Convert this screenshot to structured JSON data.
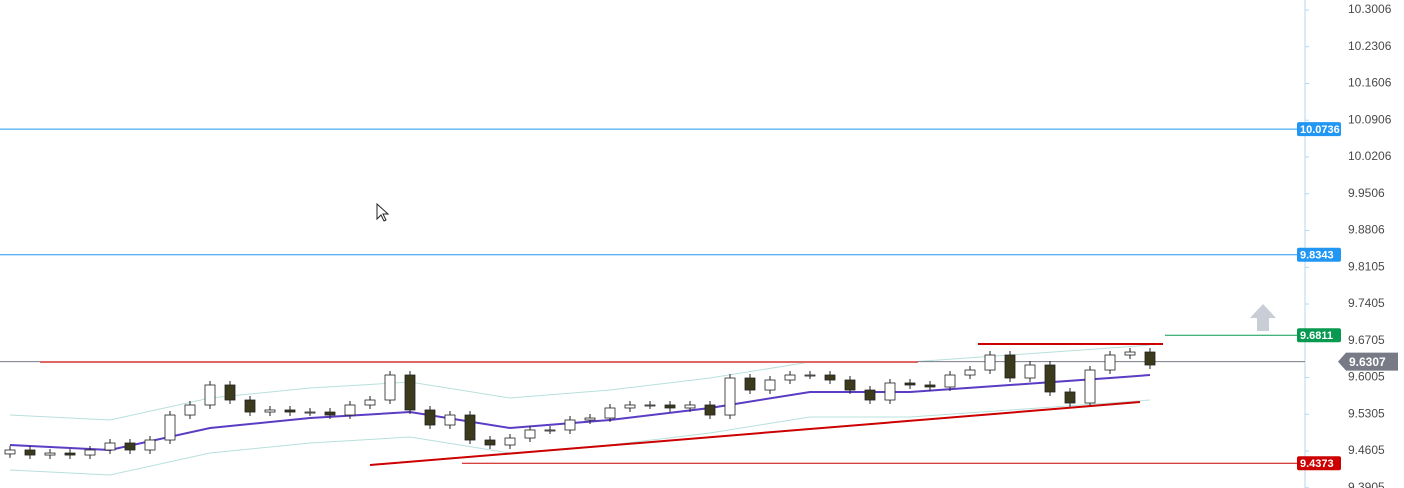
{
  "chart_data": {
    "type": "candlestick",
    "xlim": [
      -0.5,
      64.75
    ],
    "ylim": [
      9.3901,
      10.3196
    ],
    "yticks": [
      10.3006,
      10.2306,
      10.1606,
      10.0906,
      10.0206,
      9.9506,
      9.8806,
      9.8105,
      9.7405,
      9.6705,
      9.6005,
      9.5305,
      9.4605,
      9.3905
    ],
    "up_color": "#ffffff",
    "down_color": "#3b3a1c",
    "wick_color": "#222222",
    "open": [
      9.455,
      9.4625,
      9.4529,
      9.4567,
      9.4529,
      9.4625,
      9.4758,
      9.4625,
      9.4815,
      9.5291,
      9.5482,
      9.5863,
      9.5577,
      9.5348,
      9.5387,
      9.5348,
      9.5348,
      9.5291,
      9.5482,
      9.5577,
      9.6053,
      9.5387,
      9.5101,
      9.5291,
      9.4815,
      9.472,
      9.4853,
      9.5006,
      9.5006,
      9.5196,
      9.5234,
      9.5425,
      9.5482,
      9.5482,
      9.5425,
      9.5482,
      9.5291,
      9.5996,
      9.5767,
      9.5958,
      9.6053,
      9.6053,
      9.5958,
      9.5767,
      9.5577,
      9.5901,
      9.5863,
      9.5825,
      9.6053,
      9.6148,
      9.6434,
      9.5996,
      9.6244,
      9.573,
      9.552,
      9.6148,
      9.6434,
      9.6491
    ],
    "high": [
      9.4701,
      9.4701,
      9.4643,
      9.4643,
      9.4701,
      9.4834,
      9.4834,
      9.4891,
      9.5367,
      9.5558,
      9.5939,
      9.5939,
      9.5653,
      9.5463,
      9.5463,
      9.5424,
      9.5424,
      9.5558,
      9.5653,
      9.6129,
      9.6129,
      9.5463,
      9.5367,
      9.5367,
      9.4891,
      9.4929,
      9.5082,
      9.5082,
      9.5272,
      9.531,
      9.5501,
      9.5558,
      9.5558,
      9.5558,
      9.5558,
      9.5558,
      9.6072,
      9.6072,
      9.6034,
      9.6129,
      9.6129,
      9.6129,
      9.6034,
      9.5843,
      9.5977,
      9.5977,
      9.5939,
      9.6129,
      9.6224,
      9.651,
      9.651,
      9.632,
      9.632,
      9.5806,
      9.6224,
      9.651,
      9.6567,
      9.6567
    ],
    "low": [
      9.4474,
      9.4453,
      9.4453,
      9.4453,
      9.4453,
      9.4549,
      9.4549,
      9.4549,
      9.4739,
      9.5215,
      9.5406,
      9.5501,
      9.5272,
      9.5272,
      9.5272,
      9.5272,
      9.5215,
      9.5215,
      9.5406,
      9.5501,
      9.5311,
      9.5025,
      9.5025,
      9.4739,
      9.4644,
      9.4644,
      9.4777,
      9.493,
      9.493,
      9.512,
      9.5158,
      9.5349,
      9.5406,
      9.5349,
      9.5349,
      9.5215,
      9.5215,
      9.5691,
      9.5691,
      9.5882,
      9.5977,
      9.5882,
      9.5691,
      9.5501,
      9.5501,
      9.5787,
      9.5749,
      9.5749,
      9.5977,
      9.6072,
      9.592,
      9.592,
      9.5654,
      9.5444,
      9.5444,
      9.6072,
      9.6358,
      9.6168
    ],
    "close": [
      9.4625,
      9.4529,
      9.4567,
      9.4529,
      9.4625,
      9.4758,
      9.4625,
      9.4815,
      9.5291,
      9.5482,
      9.5863,
      9.5577,
      9.5348,
      9.5387,
      9.5348,
      9.5348,
      9.5291,
      9.5482,
      9.5577,
      9.6053,
      9.5387,
      9.5101,
      9.5291,
      9.4815,
      9.472,
      9.4853,
      9.5006,
      9.5006,
      9.5196,
      9.5234,
      9.5425,
      9.5482,
      9.5482,
      9.5425,
      9.5482,
      9.5291,
      9.5996,
      9.5767,
      9.5958,
      9.6053,
      9.6053,
      9.5958,
      9.5767,
      9.5577,
      9.5901,
      9.5863,
      9.5825,
      9.6053,
      9.6148,
      9.6434,
      9.5996,
      9.6244,
      9.573,
      9.552,
      9.6148,
      9.6434,
      9.6491,
      9.6244
    ],
    "overlays": [
      {
        "color": "#b8e0dc",
        "x": [
          0,
          5,
          10,
          15,
          20,
          25,
          30,
          35,
          40,
          45,
          50,
          55,
          57
        ],
        "values": [
          9.5291,
          9.5196,
          9.5615,
          9.5805,
          9.5919,
          9.5615,
          9.5767,
          9.5996,
          9.6301,
          9.6301,
          9.6434,
          9.6567,
          9.6624
        ]
      },
      {
        "color": "#b8e0dc",
        "x": [
          0,
          5,
          10,
          15,
          20,
          25,
          30,
          35,
          40,
          45,
          50,
          55,
          57
        ],
        "values": [
          9.4244,
          9.4149,
          9.4568,
          9.4758,
          9.4872,
          9.4568,
          9.472,
          9.4949,
          9.5254,
          9.5254,
          9.5387,
          9.552,
          9.5577
        ]
      },
      {
        "color": "#5b3cc4",
        "x": [
          0,
          5,
          10,
          15,
          20,
          25,
          30,
          35,
          40,
          45,
          50,
          55,
          57
        ],
        "values": [
          9.472,
          9.4625,
          9.5044,
          9.5234,
          9.5348,
          9.5044,
          9.5196,
          9.5425,
          9.573,
          9.573,
          9.5863,
          9.5996,
          9.6053
        ]
      }
    ],
    "trendlines": [
      {
        "color": "#e06666",
        "x": [
          1.5,
          45.4
        ],
        "values": [
          9.6301,
          9.6301
        ]
      },
      {
        "color": "#cc0000",
        "x": [
          48.4,
          57.65
        ],
        "values": [
          9.6643,
          9.6643
        ]
      },
      {
        "color": "#cc0000",
        "x": [
          18,
          56.5
        ],
        "values": [
          9.4339,
          9.5539
        ]
      }
    ],
    "levels": [
      {
        "value": 10.0736,
        "color": "#2196f3",
        "from": -0.5
      },
      {
        "value": 9.8343,
        "color": "#2196f3",
        "from": -0.5
      },
      {
        "value": 9.6811,
        "color": "#089950",
        "from": 57.75
      },
      {
        "value": 9.6307,
        "color": "#787b86",
        "from": -0.5
      },
      {
        "value": 9.4373,
        "color": "#cc0000",
        "from": 22.6
      }
    ]
  }
}
